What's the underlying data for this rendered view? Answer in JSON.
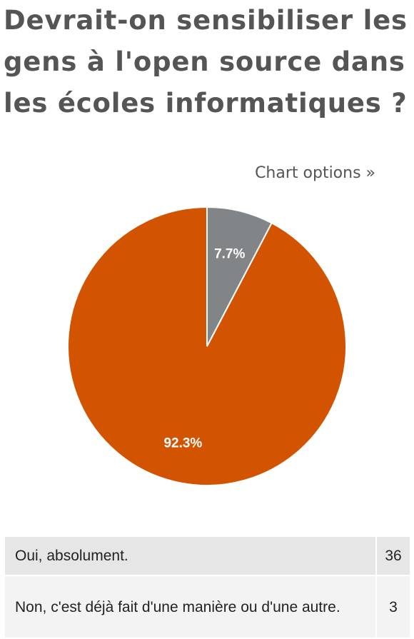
{
  "title": "Devrait-on sensibiliser les gens à l'open source dans les écoles informatiques ?",
  "chart_options_label": "Chart options »",
  "chart_data": {
    "type": "pie",
    "categories": [
      "Oui, absolument.",
      "Non, c'est déjà fait d'une manière ou d'une autre."
    ],
    "values": [
      36,
      3
    ],
    "percent_labels": [
      "92.3%",
      "7.7%"
    ],
    "colors": [
      "#d35400",
      "#818587"
    ]
  },
  "table": {
    "rows": [
      {
        "label": "Oui, absolument.",
        "count": "36"
      },
      {
        "label": "Non, c'est déjà fait d'une manière ou d'une autre.",
        "count": "3"
      }
    ]
  }
}
